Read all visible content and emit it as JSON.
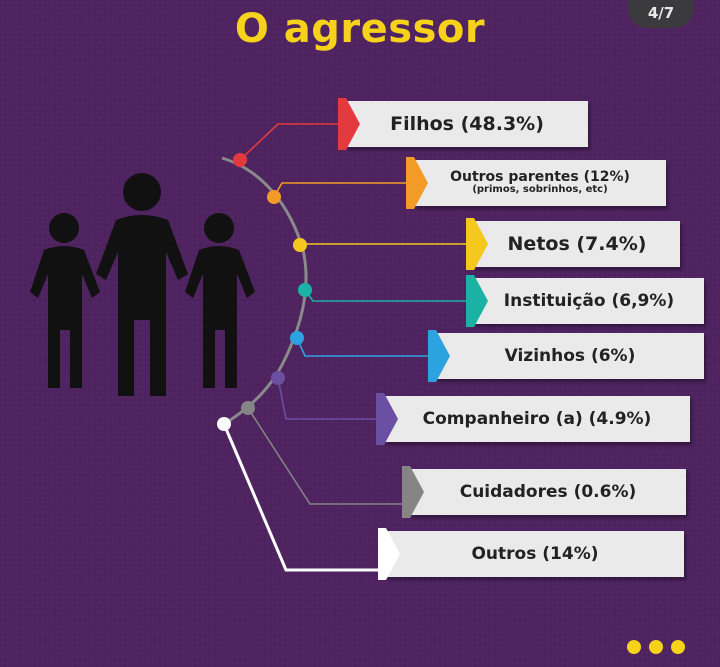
{
  "page_counter": "4/7",
  "title": "O agressor",
  "icons": {
    "people": "people-silhouette-icon",
    "more": "more-dots-icon"
  },
  "items": [
    {
      "label": "Filhos (48.3%)",
      "color": "#e23a3f",
      "value": 48.3
    },
    {
      "label": "Outros parentes (12%)",
      "sublabel": "(primos, sobrinhos, etc)",
      "color": "#f39a27",
      "value": 12
    },
    {
      "label": "Netos (7.4%)",
      "color": "#f4c81d",
      "value": 7.4
    },
    {
      "label": "Instituição (6,9%)",
      "color": "#1bb2a6",
      "value": 6.9
    },
    {
      "label": "Vizinhos (6%)",
      "color": "#2ba3df",
      "value": 6
    },
    {
      "label": "Companheiro (a) (4.9%)",
      "color": "#6a4fa3",
      "value": 4.9
    },
    {
      "label": "Cuidadores (0.6%)",
      "color": "#858585",
      "value": 0.6
    },
    {
      "label": "Outros (14%)",
      "color": "#ffffff",
      "value": 14
    }
  ],
  "colors": {
    "background": "#4e2360",
    "title": "#f7d21b",
    "trunk": "#8a8a8a",
    "box": "#eaeaea"
  }
}
